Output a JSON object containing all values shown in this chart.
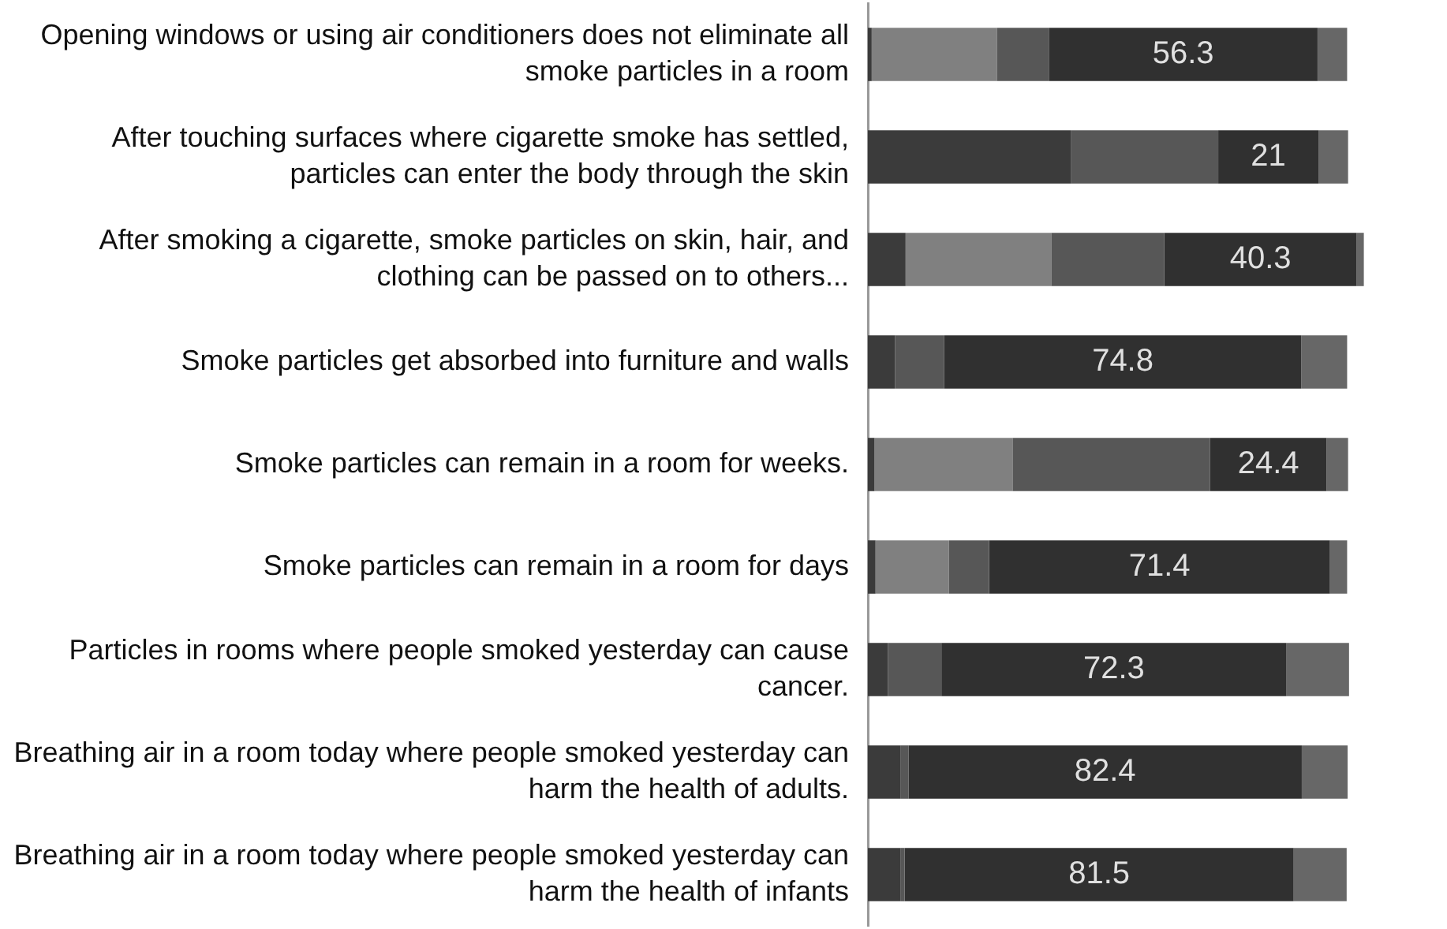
{
  "chart_data": {
    "type": "bar",
    "orientation": "horizontal",
    "stacked": true,
    "tick_labels": "y",
    "legend": false,
    "categories": [
      "Opening windows or using air conditioners does not eliminate all smoke particles in a room",
      "After touching surfaces where cigarette smoke has settled, particles can enter the body through the skin",
      "After smoking a cigarette, smoke particles on skin, hair, and clothing can be passed on to others...",
      "Smoke particles get absorbed into furniture and walls",
      "Smoke particles can remain in a room for weeks.",
      "Smoke particles can remain in a room for days",
      "Particles in rooms where people smoked yesterday can cause cancer.",
      "Breathing air in a room today where people smoked yesterday can harm the health of adults.",
      "Breathing air in a room today where people smoked yesterday can harm the health of infants"
    ],
    "series": [
      {
        "color": "#3b3b3b",
        "values": [
          0.8,
          42.6,
          7.9,
          5.7,
          1.4,
          1.6,
          4.2,
          6.8,
          6.8
        ]
      },
      {
        "color": "#808080",
        "values": [
          26.2,
          0,
          30.5,
          0,
          28.9,
          15.4,
          0,
          0,
          0
        ]
      },
      {
        "color": "#575757",
        "values": [
          10.9,
          30.8,
          23.7,
          10.3,
          41.4,
          8.4,
          11.2,
          1.7,
          0.9
        ]
      },
      {
        "color": "#303030",
        "values": [
          56.3,
          21,
          40.3,
          74.8,
          24.4,
          71.4,
          72.3,
          82.4,
          81.5
        ],
        "value_labels": [
          "56.3",
          "21",
          "40.3",
          "74.8",
          "24.4",
          "71.4",
          "72.3",
          "82.4",
          "81.5"
        ]
      },
      {
        "color": "#676767",
        "values": [
          6.2,
          6.2,
          1.5,
          9.6,
          4.5,
          3.6,
          13.1,
          9.6,
          11.1
        ]
      }
    ]
  }
}
